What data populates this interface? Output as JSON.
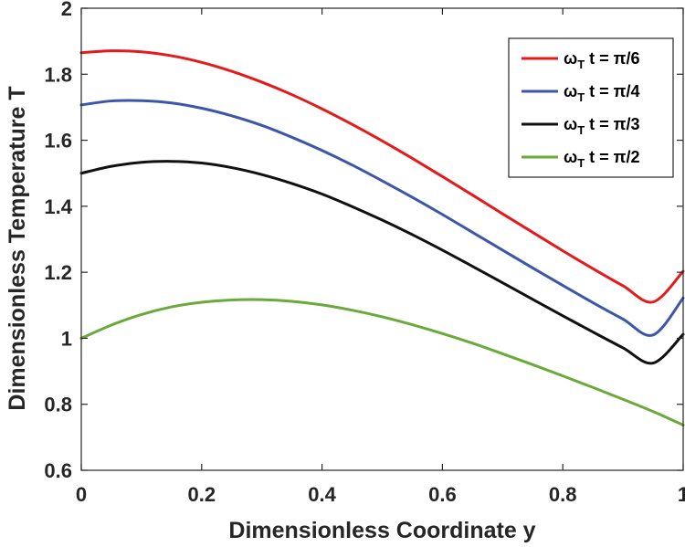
{
  "chart_data": {
    "type": "line",
    "xlabel": "Dimensionless Coordinate y",
    "ylabel": "Dimensionless Temperature T",
    "xlim": [
      0,
      1
    ],
    "ylim": [
      0.6,
      2
    ],
    "xticks": [
      0,
      0.2,
      0.4,
      0.6,
      0.8,
      1
    ],
    "xtick_labels": [
      "0",
      "0.2",
      "0.4",
      "0.6",
      "0.8",
      "1"
    ],
    "yticks": [
      0.6,
      0.8,
      1,
      1.2,
      1.4,
      1.6,
      1.8,
      2
    ],
    "ytick_labels": [
      "0.6",
      "0.8",
      "1",
      "1.2",
      "1.4",
      "1.6",
      "1.8",
      "2"
    ],
    "grid": false,
    "legend_position": "top-right",
    "x": [
      0,
      0.05,
      0.1,
      0.15,
      0.2,
      0.25,
      0.3,
      0.35,
      0.4,
      0.45,
      0.5,
      0.55,
      0.6,
      0.65,
      0.7,
      0.75,
      0.8,
      0.85,
      0.9,
      0.95,
      1
    ],
    "series": [
      {
        "name": "ωT t = π/6",
        "legend_main": "ω",
        "legend_sub": "T",
        "legend_rest": " t = π/6",
        "color": "#e41a1c",
        "values": [
          1.865,
          1.871,
          1.868,
          1.856,
          1.836,
          1.809,
          1.776,
          1.738,
          1.695,
          1.648,
          1.598,
          1.545,
          1.49,
          1.434,
          1.377,
          1.321,
          1.265,
          1.211,
          1.159,
          1.11,
          1.203
        ]
      },
      {
        "name": "ωT t = π/4",
        "legend_main": "ω",
        "legend_sub": "T",
        "legend_rest": " t = π/4",
        "color": "#3c57a8",
        "values": [
          1.707,
          1.719,
          1.72,
          1.713,
          1.697,
          1.674,
          1.645,
          1.609,
          1.569,
          1.525,
          1.477,
          1.427,
          1.375,
          1.321,
          1.267,
          1.213,
          1.16,
          1.108,
          1.058,
          1.01,
          1.122
        ]
      },
      {
        "name": "ωT t = π/3",
        "legend_main": "ω",
        "legend_sub": "T",
        "legend_rest": " t = π/3",
        "color": "#111111",
        "values": [
          1.5,
          1.521,
          1.533,
          1.536,
          1.531,
          1.517,
          1.496,
          1.469,
          1.437,
          1.399,
          1.358,
          1.314,
          1.267,
          1.218,
          1.168,
          1.118,
          1.068,
          1.019,
          0.971,
          0.925,
          1.012
        ]
      },
      {
        "name": "ωT t = π/2",
        "legend_main": "ω",
        "legend_sub": "T",
        "legend_rest": " t = π/2",
        "color": "#6aaa3a",
        "values": [
          1.0,
          1.04,
          1.072,
          1.095,
          1.109,
          1.116,
          1.117,
          1.112,
          1.101,
          1.085,
          1.065,
          1.041,
          1.014,
          0.985,
          0.953,
          0.92,
          0.886,
          0.851,
          0.815,
          0.778,
          0.737
        ]
      }
    ]
  }
}
